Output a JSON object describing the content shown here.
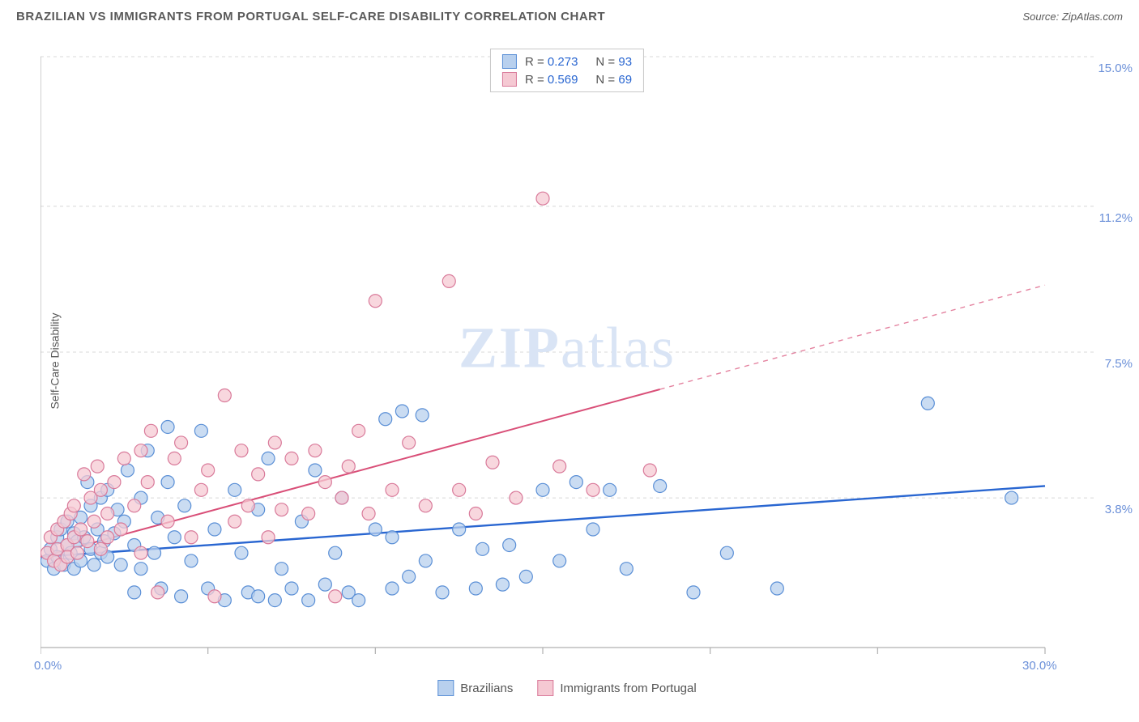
{
  "title": "BRAZILIAN VS IMMIGRANTS FROM PORTUGAL SELF-CARE DISABILITY CORRELATION CHART",
  "source": "Source: ZipAtlas.com",
  "y_axis_label": "Self-Care Disability",
  "watermark": {
    "bold": "ZIP",
    "light": "atlas"
  },
  "chart": {
    "type": "scatter",
    "background_color": "#ffffff",
    "grid_color": "#d8d8d8",
    "axis_color": "#b0b0b0",
    "xlim": [
      0,
      30
    ],
    "ylim": [
      0,
      15
    ],
    "x_ticks": [
      0,
      5,
      10,
      15,
      20,
      25,
      30
    ],
    "x_tick_labels": {
      "0": "0.0%",
      "30": "30.0%"
    },
    "y_gridlines": [
      3.8,
      7.5,
      11.2,
      15.0
    ],
    "y_tick_labels": [
      "3.8%",
      "7.5%",
      "11.2%",
      "15.0%"
    ],
    "y_label_color": "#6a8fd8",
    "marker_radius": 8,
    "marker_stroke_width": 1.2,
    "series": [
      {
        "name": "Brazilians",
        "color_fill": "#b8d0ee",
        "color_stroke": "#5a8fd6",
        "R": "0.273",
        "N": "93",
        "trend": {
          "x1": 0,
          "y1": 2.3,
          "x2": 30,
          "y2": 4.1,
          "solid_until_x": 30,
          "color": "#2966d1",
          "width": 2.4
        },
        "points": [
          [
            0.2,
            2.2
          ],
          [
            0.3,
            2.5
          ],
          [
            0.4,
            2.0
          ],
          [
            0.5,
            2.8
          ],
          [
            0.5,
            2.3
          ],
          [
            0.6,
            3.0
          ],
          [
            0.7,
            2.1
          ],
          [
            0.8,
            2.6
          ],
          [
            0.8,
            3.2
          ],
          [
            0.9,
            2.4
          ],
          [
            1.0,
            2.9
          ],
          [
            1.0,
            2.0
          ],
          [
            1.1,
            2.7
          ],
          [
            1.2,
            3.3
          ],
          [
            1.2,
            2.2
          ],
          [
            1.3,
            2.8
          ],
          [
            1.4,
            4.2
          ],
          [
            1.5,
            2.5
          ],
          [
            1.5,
            3.6
          ],
          [
            1.6,
            2.1
          ],
          [
            1.7,
            3.0
          ],
          [
            1.8,
            2.4
          ],
          [
            1.8,
            3.8
          ],
          [
            1.9,
            2.7
          ],
          [
            2.0,
            2.3
          ],
          [
            2.0,
            4.0
          ],
          [
            2.2,
            2.9
          ],
          [
            2.3,
            3.5
          ],
          [
            2.4,
            2.1
          ],
          [
            2.5,
            3.2
          ],
          [
            2.6,
            4.5
          ],
          [
            2.8,
            2.6
          ],
          [
            2.8,
            1.4
          ],
          [
            3.0,
            3.8
          ],
          [
            3.0,
            2.0
          ],
          [
            3.2,
            5.0
          ],
          [
            3.4,
            2.4
          ],
          [
            3.5,
            3.3
          ],
          [
            3.6,
            1.5
          ],
          [
            3.8,
            4.2
          ],
          [
            3.8,
            5.6
          ],
          [
            4.0,
            2.8
          ],
          [
            4.2,
            1.3
          ],
          [
            4.3,
            3.6
          ],
          [
            4.5,
            2.2
          ],
          [
            4.8,
            5.5
          ],
          [
            5.0,
            1.5
          ],
          [
            5.2,
            3.0
          ],
          [
            5.5,
            1.2
          ],
          [
            5.8,
            4.0
          ],
          [
            6.0,
            2.4
          ],
          [
            6.2,
            1.4
          ],
          [
            6.5,
            3.5
          ],
          [
            6.5,
            1.3
          ],
          [
            6.8,
            4.8
          ],
          [
            7.0,
            1.2
          ],
          [
            7.2,
            2.0
          ],
          [
            7.5,
            1.5
          ],
          [
            7.8,
            3.2
          ],
          [
            8.0,
            1.2
          ],
          [
            8.2,
            4.5
          ],
          [
            8.5,
            1.6
          ],
          [
            8.8,
            2.4
          ],
          [
            9.0,
            3.8
          ],
          [
            9.2,
            1.4
          ],
          [
            9.5,
            1.2
          ],
          [
            10.0,
            3.0
          ],
          [
            10.3,
            5.8
          ],
          [
            10.5,
            2.8
          ],
          [
            10.5,
            1.5
          ],
          [
            10.8,
            6.0
          ],
          [
            11.0,
            1.8
          ],
          [
            11.4,
            5.9
          ],
          [
            11.5,
            2.2
          ],
          [
            12.0,
            1.4
          ],
          [
            12.5,
            3.0
          ],
          [
            13.0,
            1.5
          ],
          [
            13.2,
            2.5
          ],
          [
            13.8,
            1.6
          ],
          [
            14.0,
            2.6
          ],
          [
            14.5,
            1.8
          ],
          [
            15.0,
            4.0
          ],
          [
            15.5,
            2.2
          ],
          [
            16.0,
            4.2
          ],
          [
            16.5,
            3.0
          ],
          [
            17.0,
            4.0
          ],
          [
            17.5,
            2.0
          ],
          [
            18.5,
            4.1
          ],
          [
            19.5,
            1.4
          ],
          [
            20.5,
            2.4
          ],
          [
            22.0,
            1.5
          ],
          [
            26.5,
            6.2
          ],
          [
            29.0,
            3.8
          ]
        ]
      },
      {
        "name": "Immigrants from Portugal",
        "color_fill": "#f5c9d3",
        "color_stroke": "#d97a9a",
        "R": "0.569",
        "N": "69",
        "trend": {
          "x1": 0,
          "y1": 2.3,
          "x2": 30,
          "y2": 9.2,
          "solid_until_x": 18.5,
          "color": "#d94f78",
          "width": 2.0
        },
        "points": [
          [
            0.2,
            2.4
          ],
          [
            0.3,
            2.8
          ],
          [
            0.4,
            2.2
          ],
          [
            0.5,
            3.0
          ],
          [
            0.5,
            2.5
          ],
          [
            0.6,
            2.1
          ],
          [
            0.7,
            3.2
          ],
          [
            0.8,
            2.6
          ],
          [
            0.8,
            2.3
          ],
          [
            0.9,
            3.4
          ],
          [
            1.0,
            2.8
          ],
          [
            1.0,
            3.6
          ],
          [
            1.1,
            2.4
          ],
          [
            1.2,
            3.0
          ],
          [
            1.3,
            4.4
          ],
          [
            1.4,
            2.7
          ],
          [
            1.5,
            3.8
          ],
          [
            1.6,
            3.2
          ],
          [
            1.7,
            4.6
          ],
          [
            1.8,
            2.5
          ],
          [
            1.8,
            4.0
          ],
          [
            2.0,
            3.4
          ],
          [
            2.0,
            2.8
          ],
          [
            2.2,
            4.2
          ],
          [
            2.4,
            3.0
          ],
          [
            2.5,
            4.8
          ],
          [
            2.8,
            3.6
          ],
          [
            3.0,
            5.0
          ],
          [
            3.0,
            2.4
          ],
          [
            3.2,
            4.2
          ],
          [
            3.3,
            5.5
          ],
          [
            3.5,
            1.4
          ],
          [
            3.8,
            3.2
          ],
          [
            4.0,
            4.8
          ],
          [
            4.2,
            5.2
          ],
          [
            4.5,
            2.8
          ],
          [
            4.8,
            4.0
          ],
          [
            5.0,
            4.5
          ],
          [
            5.2,
            1.3
          ],
          [
            5.5,
            6.4
          ],
          [
            5.8,
            3.2
          ],
          [
            6.0,
            5.0
          ],
          [
            6.2,
            3.6
          ],
          [
            6.5,
            4.4
          ],
          [
            6.8,
            2.8
          ],
          [
            7.0,
            5.2
          ],
          [
            7.2,
            3.5
          ],
          [
            7.5,
            4.8
          ],
          [
            8.0,
            3.4
          ],
          [
            8.2,
            5.0
          ],
          [
            8.5,
            4.2
          ],
          [
            8.8,
            1.3
          ],
          [
            9.0,
            3.8
          ],
          [
            9.2,
            4.6
          ],
          [
            9.5,
            5.5
          ],
          [
            9.8,
            3.4
          ],
          [
            10.0,
            8.8
          ],
          [
            10.5,
            4.0
          ],
          [
            11.0,
            5.2
          ],
          [
            11.5,
            3.6
          ],
          [
            12.2,
            9.3
          ],
          [
            12.5,
            4.0
          ],
          [
            13.0,
            3.4
          ],
          [
            13.5,
            4.7
          ],
          [
            14.2,
            3.8
          ],
          [
            15.0,
            11.4
          ],
          [
            15.5,
            4.6
          ],
          [
            16.5,
            4.0
          ],
          [
            18.2,
            4.5
          ]
        ]
      }
    ]
  },
  "legend": {
    "items": [
      {
        "label": "Brazilians",
        "fill": "#b8d0ee",
        "stroke": "#5a8fd6"
      },
      {
        "label": "Immigrants from Portugal",
        "fill": "#f5c9d3",
        "stroke": "#d97a9a"
      }
    ]
  }
}
